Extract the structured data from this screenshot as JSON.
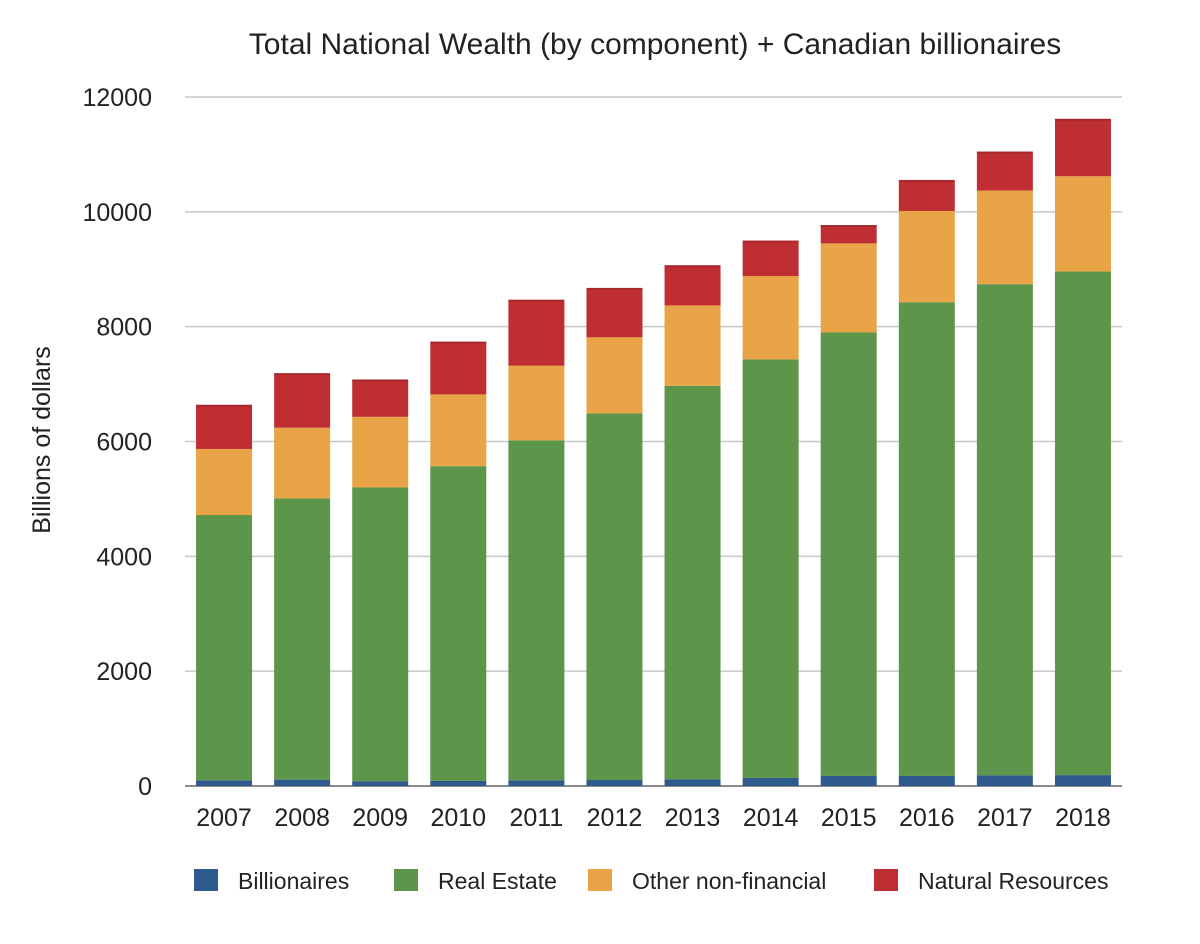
{
  "chart_data": {
    "type": "bar",
    "stacked": true,
    "title": "Total National Wealth (by component) + Canadian billionaires",
    "xlabel": "",
    "ylabel": "Billions of dollars",
    "ylim": [
      0,
      12000
    ],
    "yticks": [
      0,
      2000,
      4000,
      6000,
      8000,
      10000,
      12000
    ],
    "ytick_labels": [
      "0",
      "2000",
      "4000",
      "6000",
      "8000",
      "10000",
      "12000"
    ],
    "grid": true,
    "legend_position": "bottom",
    "categories": [
      "2007",
      "2008",
      "2009",
      "2010",
      "2011",
      "2012",
      "2013",
      "2014",
      "2015",
      "2016",
      "2017",
      "2018"
    ],
    "series": [
      {
        "name": "Billionaires",
        "color": "#2f5a8e",
        "values": [
          100,
          110,
          80,
          90,
          100,
          105,
          115,
          140,
          175,
          175,
          185,
          190
        ]
      },
      {
        "name": "Real Estate",
        "color": "#5d954a",
        "values": [
          4620,
          4900,
          5120,
          5480,
          5920,
          6385,
          6855,
          7290,
          7725,
          8250,
          8555,
          8770
        ]
      },
      {
        "name": "Other non-financial",
        "color": "#e8a446",
        "values": [
          1150,
          1230,
          1230,
          1250,
          1300,
          1325,
          1400,
          1450,
          1550,
          1590,
          1630,
          1660
        ]
      },
      {
        "name": "Natural Resources",
        "color": "#bf2e33",
        "values": [
          770,
          950,
          650,
          920,
          1150,
          860,
          700,
          620,
          320,
          540,
          680,
          1000
        ]
      }
    ]
  }
}
